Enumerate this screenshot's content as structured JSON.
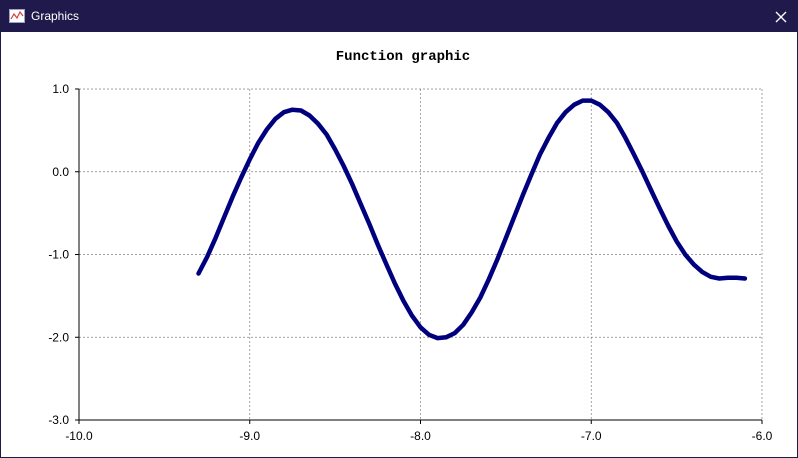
{
  "window": {
    "title": "Graphics",
    "icon": "chart-line-icon",
    "close_icon": "close-icon"
  },
  "colors": {
    "titlebar": "#1f1a4b",
    "series": "#00007f",
    "grid": "#808080"
  },
  "chart_data": {
    "type": "line",
    "title": "Function graphic",
    "xlabel": "",
    "ylabel": "",
    "xlim": [
      -10.0,
      -6.0
    ],
    "ylim": [
      -3.0,
      1.0
    ],
    "xticks": [
      "-10.0",
      "-9.0",
      "-8.0",
      "-7.0",
      "-6.0"
    ],
    "yticks": [
      "1.0",
      "0.0",
      "-1.0",
      "-2.0",
      "-3.0"
    ],
    "grid": true,
    "series": [
      {
        "x": [
          -9.3,
          -9.25,
          -9.2,
          -9.15,
          -9.1,
          -9.05,
          -9.0,
          -8.95,
          -8.9,
          -8.85,
          -8.8,
          -8.75,
          -8.7,
          -8.65,
          -8.6,
          -8.55,
          -8.5,
          -8.45,
          -8.4,
          -8.35,
          -8.3,
          -8.25,
          -8.2,
          -8.15,
          -8.1,
          -8.05,
          -8.0,
          -7.95,
          -7.9,
          -7.85,
          -7.8,
          -7.75,
          -7.7,
          -7.65,
          -7.6,
          -7.55,
          -7.5,
          -7.45,
          -7.4,
          -7.35,
          -7.3,
          -7.25,
          -7.2,
          -7.15,
          -7.1,
          -7.05,
          -7.0,
          -6.95,
          -6.9,
          -6.85,
          -6.8,
          -6.75,
          -6.7,
          -6.65,
          -6.6,
          -6.55,
          -6.5,
          -6.45,
          -6.4,
          -6.35,
          -6.3,
          -6.25,
          -6.2,
          -6.15,
          -6.1
        ],
        "y": [
          -1.23,
          -1.03,
          -0.8,
          -0.55,
          -0.3,
          -0.07,
          0.15,
          0.35,
          0.51,
          0.64,
          0.72,
          0.75,
          0.74,
          0.68,
          0.58,
          0.45,
          0.27,
          0.07,
          -0.15,
          -0.39,
          -0.63,
          -0.88,
          -1.12,
          -1.35,
          -1.56,
          -1.74,
          -1.88,
          -1.97,
          -2.01,
          -2.0,
          -1.95,
          -1.85,
          -1.7,
          -1.52,
          -1.3,
          -1.06,
          -0.8,
          -0.54,
          -0.28,
          -0.03,
          0.21,
          0.41,
          0.59,
          0.72,
          0.81,
          0.86,
          0.86,
          0.81,
          0.72,
          0.59,
          0.41,
          0.21,
          0.0,
          -0.22,
          -0.44,
          -0.65,
          -0.84,
          -1.0,
          -1.12,
          -1.21,
          -1.27,
          -1.29,
          -1.28,
          -1.28,
          -1.29
        ]
      }
    ]
  }
}
